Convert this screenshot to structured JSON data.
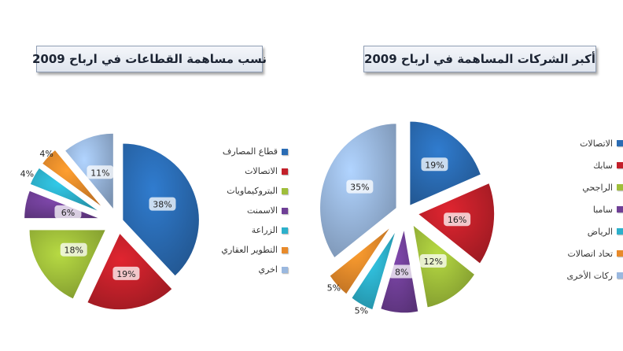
{
  "chart_data": [
    {
      "type": "pie",
      "title": "نسب مساهمة القطاعات في ارباح 2009",
      "categories": [
        "قطاع المصارف",
        "الاتصالات",
        "البتروكيماويات",
        "الاسمنت",
        "الزراعة",
        "التطوير العقاري",
        "اخري"
      ],
      "values": [
        38,
        19,
        18,
        6,
        4,
        4,
        11
      ],
      "labels": [
        "38%",
        "19%",
        "18%",
        "6%",
        "4%",
        "4%",
        "11%"
      ],
      "colors": [
        "#2a6cb4",
        "#c3202a",
        "#9fbe3a",
        "#6f3f96",
        "#2cb0cb",
        "#e88a2a",
        "#9ab8df"
      ],
      "legend_position": "right"
    },
    {
      "type": "pie",
      "title": "أكبر الشركات المساهمة في ارباح 2009",
      "categories": [
        "الاتصالات",
        "سابك",
        "الراجحي",
        "سامبا",
        "الرياض",
        "تحاد اتصالات",
        "ركات الأخرى"
      ],
      "values": [
        19,
        16,
        12,
        8,
        5,
        5,
        35
      ],
      "labels": [
        "19%",
        "16%",
        "12%",
        "8%",
        "5%",
        "5%",
        "35%"
      ],
      "colors": [
        "#2a6cb4",
        "#c3202a",
        "#9fbe3a",
        "#6f3f96",
        "#2cb0cb",
        "#e88a2a",
        "#9ab8df"
      ],
      "legend_position": "right"
    }
  ]
}
